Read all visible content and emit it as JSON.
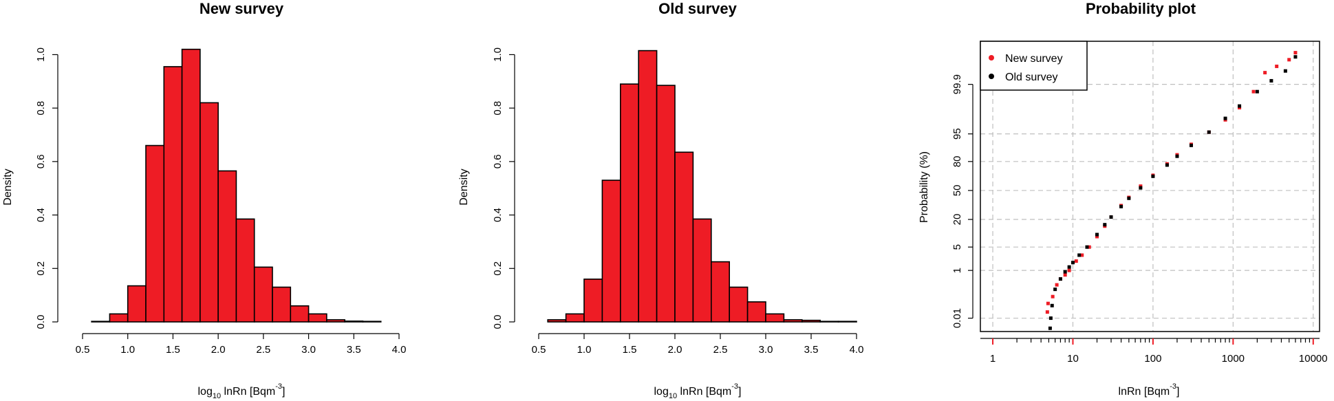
{
  "chart_data": [
    {
      "type": "bar",
      "title": "New survey",
      "ylabel": "Density",
      "xlabel_parts": [
        "log",
        "10",
        " lnRn [Bqm",
        "-3",
        "]"
      ],
      "bin_width": 0.2,
      "bin_starts": [
        0.6,
        0.8,
        1.0,
        1.2,
        1.4,
        1.6,
        1.8,
        2.0,
        2.2,
        2.4,
        2.6,
        2.8,
        3.0,
        3.2,
        3.4,
        3.6
      ],
      "values": [
        0.002,
        0.03,
        0.135,
        0.66,
        0.955,
        1.02,
        0.82,
        0.565,
        0.385,
        0.205,
        0.13,
        0.06,
        0.03,
        0.008,
        0.003,
        0.002
      ],
      "xlim": [
        0.5,
        4.0
      ],
      "ylim": [
        0.0,
        1.05
      ],
      "x_ticks": [
        "0.5",
        "1.0",
        "1.5",
        "2.0",
        "2.5",
        "3.0",
        "3.5",
        "4.0"
      ],
      "x_tick_values": [
        0.5,
        1.0,
        1.5,
        2.0,
        2.5,
        3.0,
        3.5,
        4.0
      ],
      "y_ticks": [
        "0.0",
        "0.2",
        "0.4",
        "0.6",
        "0.8",
        "1.0"
      ],
      "y_tick_values": [
        0.0,
        0.2,
        0.4,
        0.6,
        0.8,
        1.0
      ],
      "bar_color": "#ee1c25"
    },
    {
      "type": "bar",
      "title": "Old survey",
      "ylabel": "Density",
      "xlabel_parts": [
        "log",
        "10",
        " lnRn [Bqm",
        "-3",
        "]"
      ],
      "bin_width": 0.2,
      "bin_starts": [
        0.6,
        0.8,
        1.0,
        1.2,
        1.4,
        1.6,
        1.8,
        2.0,
        2.2,
        2.4,
        2.6,
        2.8,
        3.0,
        3.2,
        3.4,
        3.6,
        3.8
      ],
      "values": [
        0.008,
        0.03,
        0.16,
        0.53,
        0.89,
        1.015,
        0.885,
        0.635,
        0.385,
        0.225,
        0.13,
        0.075,
        0.03,
        0.008,
        0.006,
        0.002,
        0.002
      ],
      "xlim": [
        0.5,
        4.0
      ],
      "ylim": [
        0.0,
        1.05
      ],
      "x_ticks": [
        "0.5",
        "1.0",
        "1.5",
        "2.0",
        "2.5",
        "3.0",
        "3.5",
        "4.0"
      ],
      "x_tick_values": [
        0.5,
        1.0,
        1.5,
        2.0,
        2.5,
        3.0,
        3.5,
        4.0
      ],
      "y_ticks": [
        "0.0",
        "0.2",
        "0.4",
        "0.6",
        "0.8",
        "1.0"
      ],
      "y_tick_values": [
        0.0,
        0.2,
        0.4,
        0.6,
        0.8,
        1.0
      ],
      "bar_color": "#ee1c25"
    },
    {
      "type": "scatter",
      "title": "Probability plot",
      "ylabel": "Probability (%)",
      "xlabel_parts": [
        "lnRn [Bqm",
        "-3",
        "]"
      ],
      "x_scale": "log",
      "y_scale": "normal-probability",
      "xlim": [
        0.7,
        12000
      ],
      "x_ticks": [
        "1",
        "10",
        "100",
        "1000",
        "10000"
      ],
      "x_tick_values": [
        1,
        10,
        100,
        1000,
        10000
      ],
      "y_ticks": [
        "0.01",
        "1",
        "5",
        "20",
        "50",
        "80",
        "95",
        "99.9"
      ],
      "y_tick_values": [
        0.01,
        1,
        5,
        20,
        50,
        80,
        95,
        99.9
      ],
      "grid": true,
      "legend_position": "top-left",
      "series": [
        {
          "name": "New survey",
          "color": "#ee1c25",
          "points": [
            [
              4.8,
              0.02
            ],
            [
              4.9,
              0.05
            ],
            [
              5.6,
              0.1
            ],
            [
              6.3,
              0.3
            ],
            [
              7,
              0.5
            ],
            [
              8,
              0.7
            ],
            [
              9,
              1
            ],
            [
              11,
              2
            ],
            [
              13,
              3
            ],
            [
              16,
              5
            ],
            [
              20,
              9
            ],
            [
              25,
              15
            ],
            [
              30,
              22
            ],
            [
              40,
              33
            ],
            [
              50,
              42
            ],
            [
              70,
              55
            ],
            [
              100,
              67
            ],
            [
              150,
              78
            ],
            [
              200,
              85
            ],
            [
              300,
              91
            ],
            [
              500,
              95.5
            ],
            [
              800,
              98
            ],
            [
              1200,
              99.2
            ],
            [
              1800,
              99.8
            ],
            [
              2500,
              99.97
            ],
            [
              3500,
              99.985
            ],
            [
              5000,
              99.993
            ],
            [
              6000,
              99.997
            ]
          ]
        },
        {
          "name": "Old survey",
          "color": "#000000",
          "points": [
            [
              5.2,
              0.003
            ],
            [
              5.3,
              0.01
            ],
            [
              5.5,
              0.04
            ],
            [
              6,
              0.2
            ],
            [
              7,
              0.5
            ],
            [
              8,
              0.9
            ],
            [
              9,
              1.3
            ],
            [
              10,
              1.8
            ],
            [
              12,
              3
            ],
            [
              15,
              5
            ],
            [
              20,
              10
            ],
            [
              25,
              16
            ],
            [
              30,
              22
            ],
            [
              40,
              32
            ],
            [
              50,
              41
            ],
            [
              70,
              53
            ],
            [
              100,
              66
            ],
            [
              150,
              77
            ],
            [
              200,
              84
            ],
            [
              300,
              90.5
            ],
            [
              500,
              95.5
            ],
            [
              800,
              98.2
            ],
            [
              1200,
              99.3
            ],
            [
              2000,
              99.8
            ],
            [
              3000,
              99.93
            ],
            [
              4500,
              99.975
            ],
            [
              6000,
              99.995
            ]
          ]
        }
      ]
    }
  ]
}
